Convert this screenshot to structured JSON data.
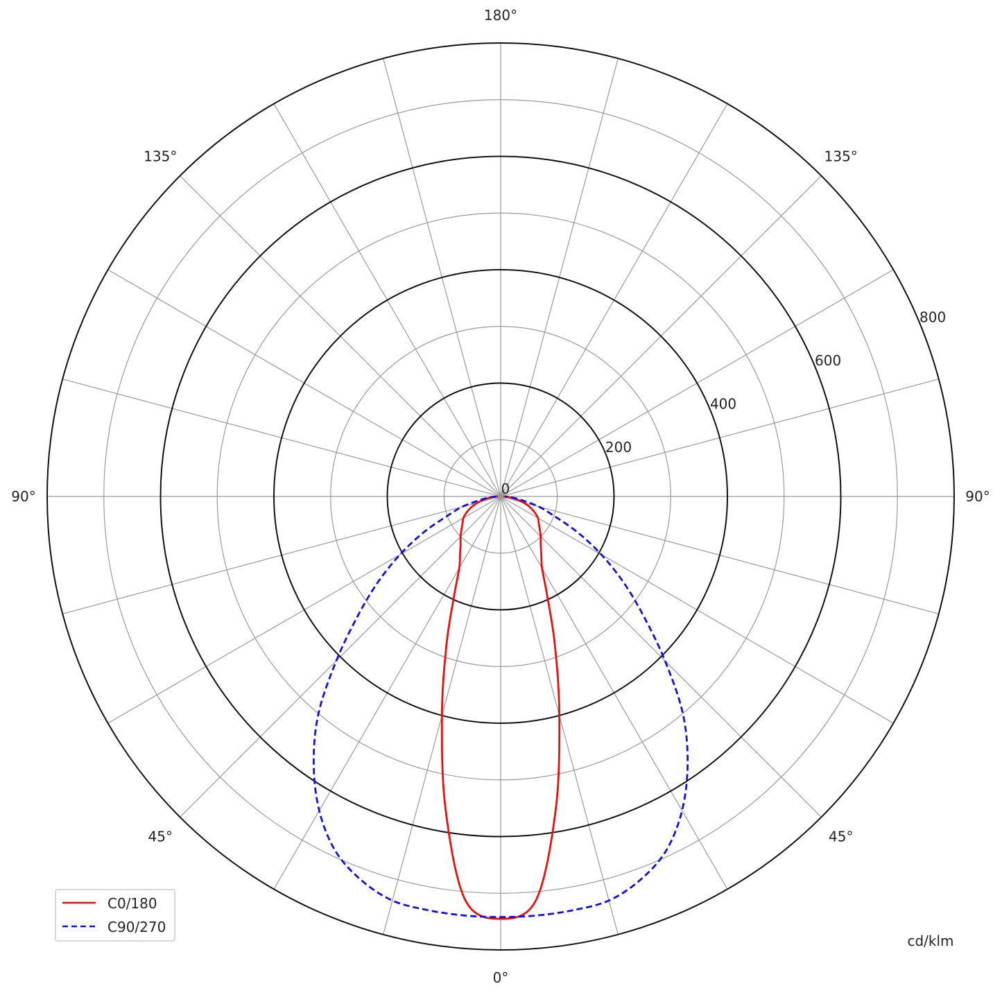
{
  "chart_data": {
    "type": "polar-line",
    "unit_label": "cd/klm",
    "radial_ticks": [
      0,
      200,
      400,
      600,
      800
    ],
    "radial_range": [
      0,
      800
    ],
    "angle_labels": [
      {
        "text": "180°",
        "angle": 180,
        "side": "top"
      },
      {
        "text": "135°",
        "angle": 135,
        "side": "left"
      },
      {
        "text": "135°",
        "angle": 135,
        "side": "right"
      },
      {
        "text": "90°",
        "angle": 90,
        "side": "left"
      },
      {
        "text": "90°",
        "angle": 90,
        "side": "right"
      },
      {
        "text": "45°",
        "angle": 45,
        "side": "left"
      },
      {
        "text": "45°",
        "angle": 45,
        "side": "right"
      },
      {
        "text": "0°",
        "angle": 0,
        "side": "bottom"
      }
    ],
    "angle_grid_step_deg": 15,
    "grid": true,
    "legend_placement": "bottom-left",
    "gamma": [
      0,
      5,
      10,
      15,
      20,
      25,
      30,
      35,
      40,
      45,
      50,
      55,
      60,
      65,
      70,
      75,
      80,
      85,
      90
    ],
    "series": [
      {
        "name": "C0/180",
        "color": "#e8100f",
        "dash": "solid",
        "values": [
          745,
          715,
          560,
          400,
          280,
          195,
          146,
          125,
          110,
          100,
          90,
          82,
          76,
          66,
          55,
          42,
          28,
          15,
          5
        ]
      },
      {
        "name": "C90/270",
        "color": "#1010e0",
        "dash": "dashed",
        "values": [
          742,
          742,
          741,
          738,
          720,
          690,
          640,
          575,
          500,
          410,
          330,
          265,
          205,
          150,
          100,
          70,
          38,
          20,
          8
        ]
      }
    ]
  }
}
